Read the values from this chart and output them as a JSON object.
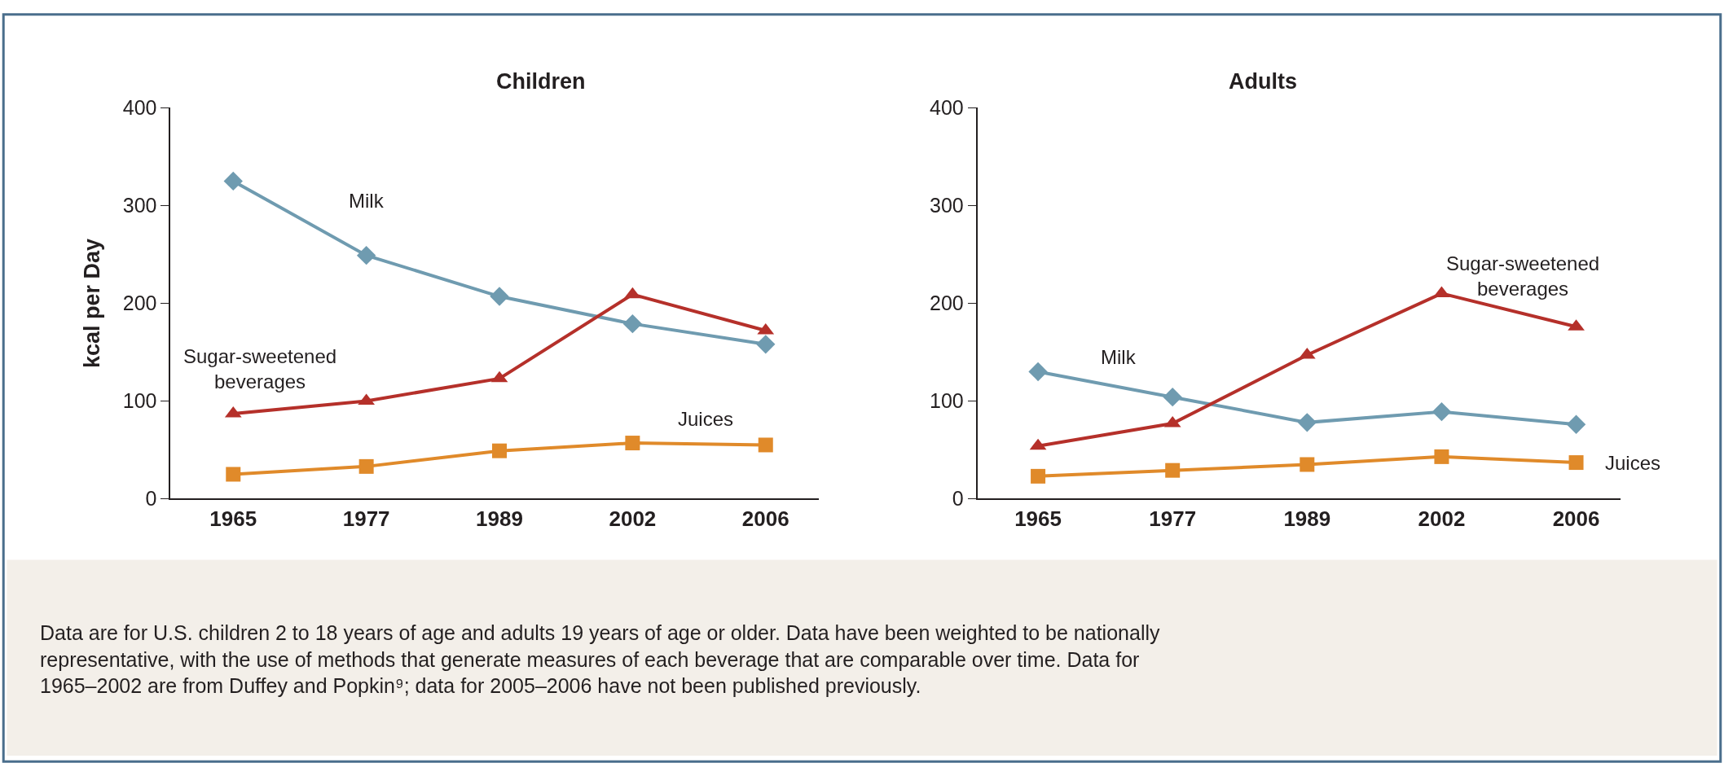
{
  "chart_data": [
    {
      "type": "line",
      "title": "Children",
      "ylabel": "kcal per Day",
      "categories": [
        "1965",
        "1977",
        "1989",
        "2002",
        "2006"
      ],
      "ylim": [
        0,
        400
      ],
      "yticks": [
        0,
        100,
        200,
        300,
        400
      ],
      "series": [
        {
          "name": "Milk",
          "color": "#6f9bb0",
          "marker": "diamond",
          "values": [
            325,
            249,
            207,
            179,
            158
          ]
        },
        {
          "name": "Sugar-sweetened beverages",
          "color": "#b5302a",
          "marker": "triangle",
          "values": [
            87,
            100,
            123,
            209,
            172
          ]
        },
        {
          "name": "Juices",
          "color": "#e08a2a",
          "marker": "square",
          "values": [
            25,
            33,
            49,
            57,
            55
          ]
        }
      ]
    },
    {
      "type": "line",
      "title": "Adults",
      "categories": [
        "1965",
        "1977",
        "1989",
        "2002",
        "2006"
      ],
      "ylim": [
        0,
        400
      ],
      "yticks": [
        0,
        100,
        200,
        300,
        400
      ],
      "annotations": [
        "Data are for U.S. children 2 to 18 years of age and adults 19 years of age or older. Data have been weighted to be nationally representative, with the use of methods that generate measures of each beverage that are comparable over time. Data for 1965–2002 are from Duffey and Popkin⁹; data for 2005–2006 have not been published previously."
      ],
      "series": [
        {
          "name": "Milk",
          "color": "#6f9bb0",
          "marker": "diamond",
          "values": [
            130,
            104,
            78,
            89,
            76
          ]
        },
        {
          "name": "Sugar-sweetened beverages",
          "color": "#b5302a",
          "marker": "triangle",
          "values": [
            54,
            77,
            147,
            210,
            176
          ]
        },
        {
          "name": "Juices",
          "color": "#e08a2a",
          "marker": "square",
          "values": [
            23,
            29,
            35,
            43,
            37
          ]
        }
      ]
    }
  ]
}
